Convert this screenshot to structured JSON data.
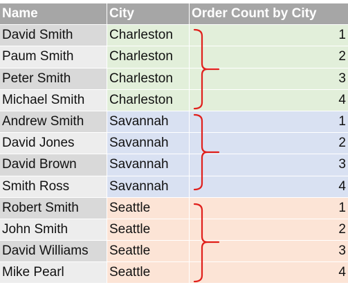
{
  "columns": {
    "name": "Name",
    "city": "City",
    "count": "Order Count by City"
  },
  "rows": [
    {
      "name": "David Smith",
      "city": "Charleston",
      "count": "1"
    },
    {
      "name": "Paum Smith",
      "city": "Charleston",
      "count": "2"
    },
    {
      "name": "Peter Smith",
      "city": "Charleston",
      "count": "3"
    },
    {
      "name": "Michael Smith",
      "city": "Charleston",
      "count": "4"
    },
    {
      "name": "Andrew Smith",
      "city": "Savannah",
      "count": "1"
    },
    {
      "name": "David Jones",
      "city": "Savannah",
      "count": "2"
    },
    {
      "name": "David Brown",
      "city": "Savannah",
      "count": "3"
    },
    {
      "name": "Smith Ross",
      "city": "Savannah",
      "count": "4"
    },
    {
      "name": "Robert Smith",
      "city": "Seattle",
      "count": "1"
    },
    {
      "name": "John Smith",
      "city": "Seattle",
      "count": "2"
    },
    {
      "name": "David Williams",
      "city": "Seattle",
      "count": "3"
    },
    {
      "name": "Mike Pearl",
      "city": "Seattle",
      "count": "4"
    }
  ],
  "colors": {
    "header_bg": "#a6a6a6",
    "charleston_bg": "#e2efda",
    "savannah_bg": "#d9e1f2",
    "seattle_bg": "#fce4d6",
    "brace": "#e0201c"
  },
  "annotations": {
    "brace_icon": "red-curly-brace"
  }
}
